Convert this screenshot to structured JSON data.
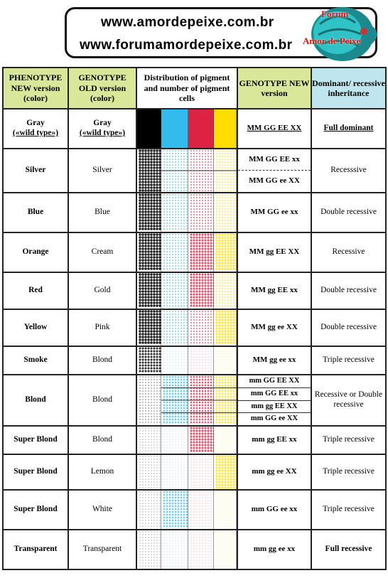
{
  "header": {
    "url1": "www.amordepeixe.com.br",
    "url2": "www.forumamordepeixe.com.br",
    "logo_line1": "Forum",
    "logo_line2": "Amor de Peixe"
  },
  "columns": [
    "PHENOTYPE NEW version (color)",
    "GENOTYPE OLD version (color)",
    "Distribution of pigment and number of pigment cells",
    "GENOTYPE NEW version",
    "Dominant/ recessive inheritance"
  ],
  "colors": {
    "black": "#000000",
    "cyan": "#33bbee",
    "red": "#dd2244",
    "yellow": "#ffdd00",
    "header_green": "#d8e79a",
    "header_blue": "#bfe6ee"
  },
  "rows": [
    {
      "phen": "Gray",
      "phen2": "(«wild type»)",
      "old": "Gray",
      "old2": "(«wild type»)",
      "geno": [
        "MM GG EE XX"
      ],
      "inh": "Full dominant",
      "level": [
        1,
        1,
        1,
        1
      ]
    },
    {
      "phen": "Silver",
      "old": "Silver",
      "geno": [
        "MM GG EE xx",
        "MM GG ee XX"
      ],
      "inh": "Recesssive",
      "level": [
        0.8,
        0.45,
        0.45,
        0.45
      ]
    },
    {
      "phen": "Blue",
      "old": "Blue",
      "geno": [
        "MM GG ee xx"
      ],
      "inh": "Double recessive",
      "level": [
        0.8,
        0.45,
        0.45,
        0.45
      ]
    },
    {
      "phen": "Orange",
      "old": "Cream",
      "geno": [
        "MM gg EE XX"
      ],
      "inh": "Recessive",
      "level": [
        0.8,
        0.45,
        0.7,
        0.7
      ]
    },
    {
      "phen": "Red",
      "old": "Gold",
      "geno": [
        "MM gg EE xx"
      ],
      "inh": "Double recessive",
      "level": [
        0.8,
        0.45,
        0.7,
        0.45
      ]
    },
    {
      "phen": "Yellow",
      "old": "Pink",
      "geno": [
        "MM gg ee XX"
      ],
      "inh": "Double recessive",
      "level": [
        0.8,
        0.45,
        0.45,
        0.7
      ]
    },
    {
      "phen": "Smoke",
      "old": "Blond",
      "geno": [
        "MM gg ee xx"
      ],
      "inh": "Triple recessive",
      "level": [
        0.7,
        0.2,
        0.2,
        0.2
      ]
    },
    {
      "phen": "Blond",
      "old": "Blond",
      "geno": [
        "mm GG  EE XX",
        "mm GG EE  xx",
        "mm gg  EE XX",
        "mm GG ee XX"
      ],
      "inh": "Recessive or Double recessive",
      "level": [
        0.35,
        0.6,
        0.6,
        0.6
      ]
    },
    {
      "phen": "Super Blond",
      "old": "Blond",
      "geno": [
        "mm gg  EE xx"
      ],
      "inh": "Triple recessive",
      "level": [
        0.2,
        0.15,
        0.7,
        0.15
      ]
    },
    {
      "phen": "Super Blond",
      "old": "Lemon",
      "geno": [
        "mm gg ee XX"
      ],
      "inh": "Triple recessive",
      "level": [
        0.2,
        0.15,
        0.15,
        0.7
      ]
    },
    {
      "phen": "Super Blond",
      "old": "White",
      "geno": [
        "mm GG ee xx"
      ],
      "inh": "Triple recessive",
      "level": [
        0.2,
        0.6,
        0.15,
        0.15
      ]
    },
    {
      "phen": "Transparent",
      "old": "Transparent",
      "geno": [
        "mm gg ee xx"
      ],
      "inh": "Full recessive",
      "level": [
        0.2,
        0.1,
        0.1,
        0.1
      ]
    }
  ]
}
